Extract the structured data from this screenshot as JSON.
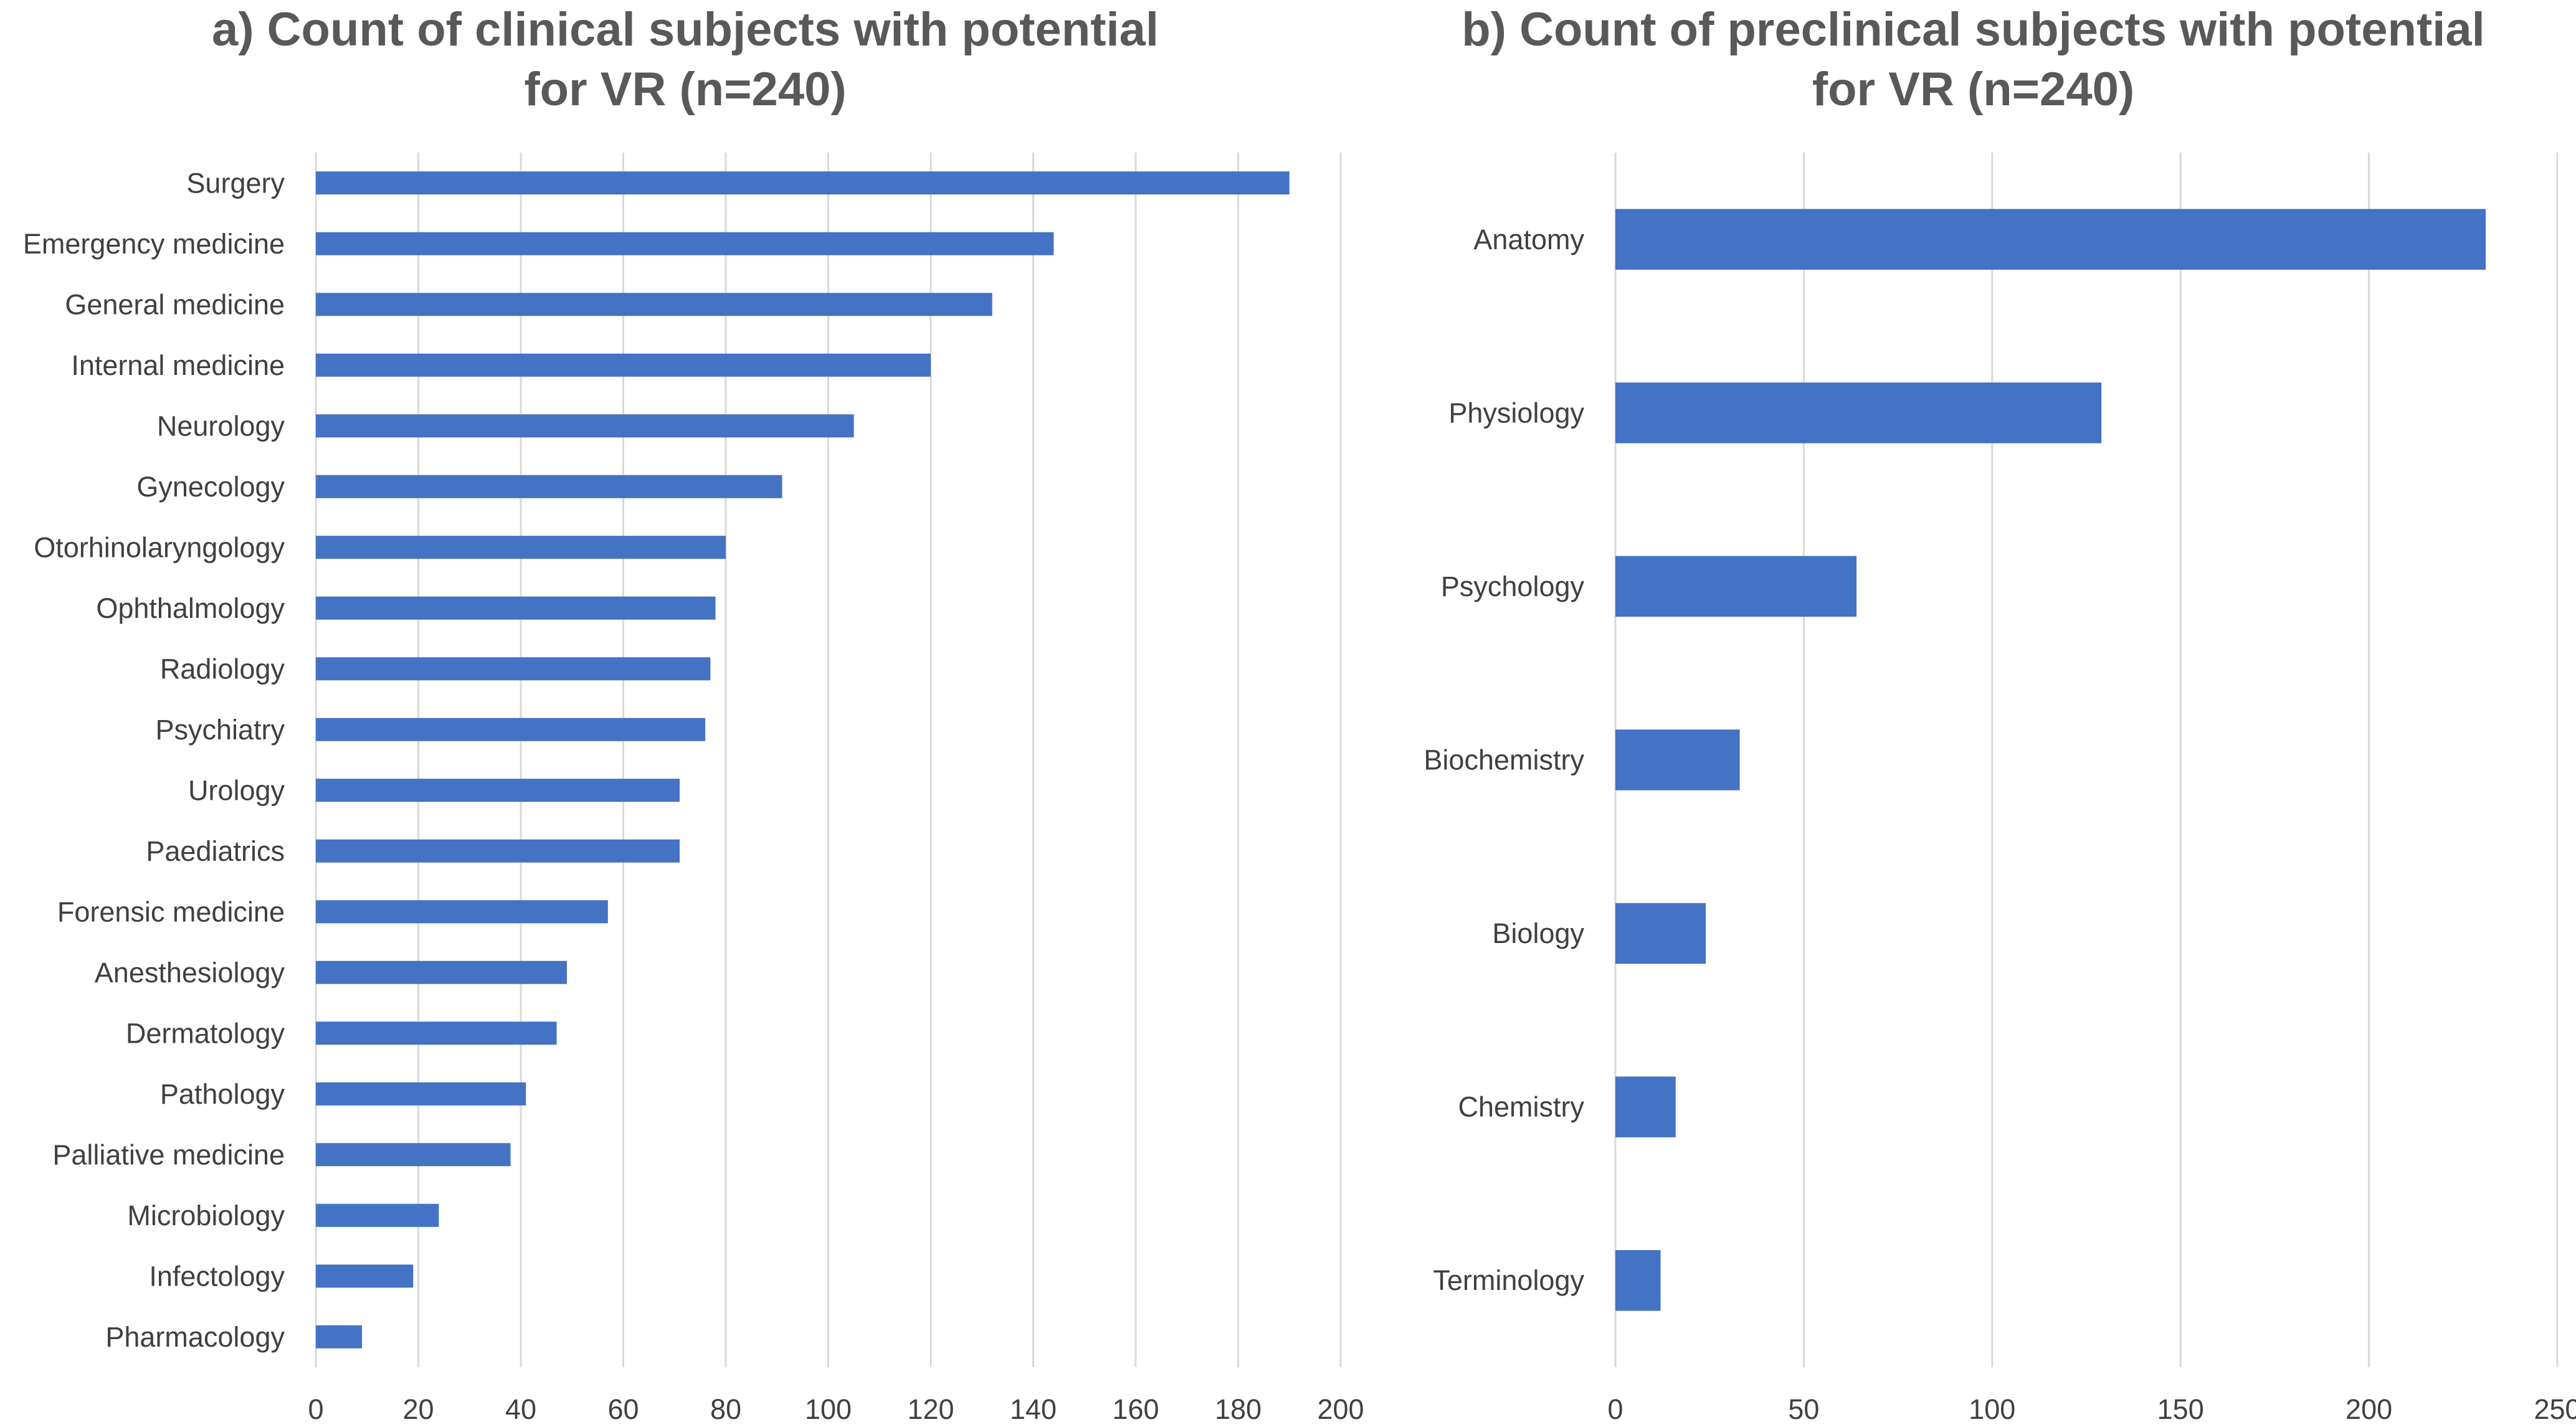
{
  "colors": {
    "bar": "#4472C4",
    "grid": "#D9D9D9",
    "text": "#404040",
    "title": "#595959"
  },
  "chart_data": [
    {
      "type": "bar",
      "orientation": "horizontal",
      "title": "a) Count of clinical subjects with potential for VR (n=240)",
      "title_lines": [
        "a) Count of clinical subjects with potential",
        "for VR (n=240)"
      ],
      "categories": [
        "Surgery",
        "Emergency medicine",
        "General medicine",
        "Internal medicine",
        "Neurology",
        "Gynecology",
        "Otorhinolaryngology",
        "Ophthalmology",
        "Radiology",
        "Psychiatry",
        "Urology",
        "Paediatrics",
        "Forensic medicine",
        "Anesthesiology",
        "Dermatology",
        "Pathology",
        "Palliative medicine",
        "Microbiology",
        "Infectology",
        "Pharmacology"
      ],
      "values": [
        190,
        144,
        132,
        120,
        105,
        91,
        80,
        78,
        77,
        76,
        71,
        71,
        57,
        49,
        47,
        41,
        38,
        24,
        19,
        9
      ],
      "xlim": [
        0,
        200
      ],
      "xticks": [
        "0",
        "20",
        "40",
        "60",
        "80",
        "100",
        "120",
        "140",
        "160",
        "180",
        "200"
      ],
      "xlabel": "",
      "ylabel": "",
      "grid": true
    },
    {
      "type": "bar",
      "orientation": "horizontal",
      "title": "b) Count of preclinical subjects with potential for VR (n=240)",
      "title_lines": [
        "b) Count of preclinical subjects with potential",
        "for VR (n=240)"
      ],
      "categories": [
        "Anatomy",
        "Physiology",
        "Psychology",
        "Biochemistry",
        "Biology",
        "Chemistry",
        "Terminology"
      ],
      "values": [
        231,
        129,
        64,
        33,
        24,
        16,
        12
      ],
      "xlim": [
        0,
        250
      ],
      "xticks": [
        "0",
        "50",
        "100",
        "150",
        "200",
        "250"
      ],
      "xlabel": "",
      "ylabel": "",
      "grid": true
    }
  ]
}
